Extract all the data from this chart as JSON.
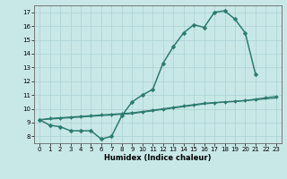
{
  "x_values": [
    0,
    1,
    2,
    3,
    4,
    5,
    6,
    7,
    8,
    9,
    10,
    11,
    12,
    13,
    14,
    15,
    16,
    17,
    18,
    19,
    20,
    21,
    22,
    23
  ],
  "line1_y": [
    9.2,
    8.8,
    8.7,
    8.4,
    8.4,
    8.4,
    7.8,
    8.0,
    9.5,
    10.5,
    11.0,
    11.4,
    13.3,
    14.5,
    15.5,
    16.1,
    15.9,
    17.0,
    17.1,
    16.5,
    15.5,
    12.5,
    null,
    null
  ],
  "line2_y": [
    9.2,
    9.3,
    9.35,
    9.4,
    9.45,
    9.5,
    9.55,
    9.6,
    9.65,
    9.7,
    9.8,
    9.9,
    10.0,
    10.1,
    10.2,
    10.3,
    10.4,
    10.45,
    10.5,
    10.55,
    10.6,
    10.7,
    10.8,
    10.9
  ],
  "line3_y": [
    9.2,
    9.25,
    9.3,
    9.35,
    9.4,
    9.45,
    9.5,
    9.55,
    9.6,
    9.65,
    9.75,
    9.85,
    9.95,
    10.05,
    10.15,
    10.25,
    10.35,
    10.42,
    10.48,
    10.52,
    10.58,
    10.65,
    10.72,
    10.78
  ],
  "line_color": "#2d7b6f",
  "bg_color": "#c8e8e8",
  "grid_color": "#b0d4d4",
  "xlabel": "Humidex (Indice chaleur)",
  "xlim": [
    -0.5,
    23.5
  ],
  "ylim": [
    7.5,
    17.5
  ],
  "yticks": [
    8,
    9,
    10,
    11,
    12,
    13,
    14,
    15,
    16,
    17
  ],
  "xticks": [
    0,
    1,
    2,
    3,
    4,
    5,
    6,
    7,
    8,
    9,
    10,
    11,
    12,
    13,
    14,
    15,
    16,
    17,
    18,
    19,
    20,
    21,
    22,
    23
  ]
}
